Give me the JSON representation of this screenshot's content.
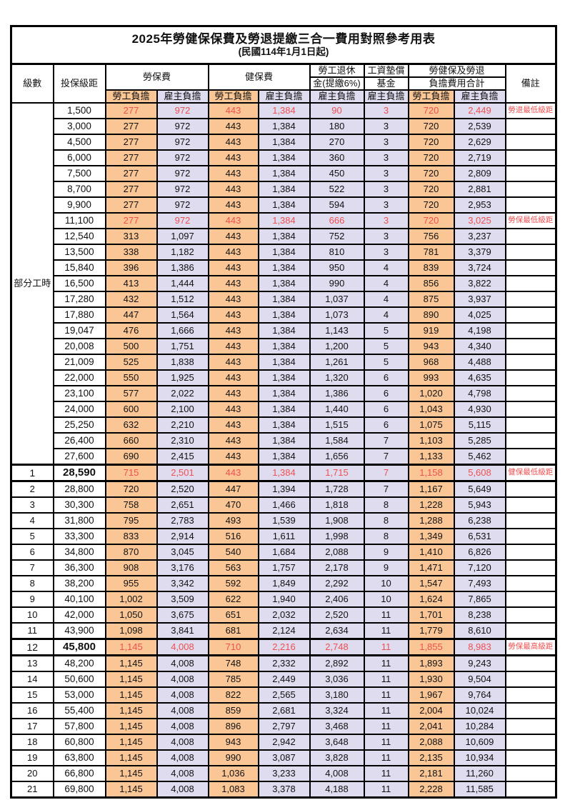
{
  "page": {
    "title": "2025年勞健保保費及勞退提繳三合一費用對照參考用表",
    "subtitle": "(民國114年1月1日起)"
  },
  "colors": {
    "employee_share_bg": "#FAC695",
    "employer_share_bg": "#DFDCF0",
    "highlight_text": "#F05050",
    "border": "#000000"
  },
  "table": {
    "headers": {
      "grade": "級數",
      "bracket": "投保級距",
      "labor_insurance": "勞保費",
      "health_insurance": "健保費",
      "pension_line1": "勞工退休",
      "pension_line2": "金(提繳6%)",
      "wage_fund_line1": "工資墊償",
      "wage_fund_line2": "基金",
      "total_line1": "勞健保及勞退",
      "total_line2": "負擔費用合計",
      "employee_share": "勞工負擔",
      "employer_share": "雇主負擔",
      "remark": "備註"
    },
    "part_time_label": "部分工時",
    "part_time_rowspan": 23,
    "rows": [
      {
        "grade": "",
        "bracket": "1,500",
        "cells": [
          "277",
          "972",
          "443",
          "1,384",
          "90",
          "3",
          "720",
          "2,449"
        ],
        "remark": "勞退最低級距",
        "red": true,
        "bold": false
      },
      {
        "grade": "",
        "bracket": "3,000",
        "cells": [
          "277",
          "972",
          "443",
          "1,384",
          "180",
          "3",
          "720",
          "2,539"
        ],
        "remark": "",
        "red": false,
        "bold": false
      },
      {
        "grade": "",
        "bracket": "4,500",
        "cells": [
          "277",
          "972",
          "443",
          "1,384",
          "270",
          "3",
          "720",
          "2,629"
        ],
        "remark": "",
        "red": false,
        "bold": false
      },
      {
        "grade": "",
        "bracket": "6,000",
        "cells": [
          "277",
          "972",
          "443",
          "1,384",
          "360",
          "3",
          "720",
          "2,719"
        ],
        "remark": "",
        "red": false,
        "bold": false
      },
      {
        "grade": "",
        "bracket": "7,500",
        "cells": [
          "277",
          "972",
          "443",
          "1,384",
          "450",
          "3",
          "720",
          "2,809"
        ],
        "remark": "",
        "red": false,
        "bold": false
      },
      {
        "grade": "",
        "bracket": "8,700",
        "cells": [
          "277",
          "972",
          "443",
          "1,384",
          "522",
          "3",
          "720",
          "2,881"
        ],
        "remark": "",
        "red": false,
        "bold": false
      },
      {
        "grade": "",
        "bracket": "9,900",
        "cells": [
          "277",
          "972",
          "443",
          "1,384",
          "594",
          "3",
          "720",
          "2,953"
        ],
        "remark": "",
        "red": false,
        "bold": false
      },
      {
        "grade": "",
        "bracket": "11,100",
        "cells": [
          "277",
          "972",
          "443",
          "1,384",
          "666",
          "3",
          "720",
          "3,025"
        ],
        "remark": "勞保最低級距",
        "red": true,
        "bold": false
      },
      {
        "grade": "",
        "bracket": "12,540",
        "cells": [
          "313",
          "1,097",
          "443",
          "1,384",
          "752",
          "3",
          "756",
          "3,237"
        ],
        "remark": "",
        "red": false,
        "bold": false
      },
      {
        "grade": "",
        "bracket": "13,500",
        "cells": [
          "338",
          "1,182",
          "443",
          "1,384",
          "810",
          "3",
          "781",
          "3,379"
        ],
        "remark": "",
        "red": false,
        "bold": false
      },
      {
        "grade": "",
        "bracket": "15,840",
        "cells": [
          "396",
          "1,386",
          "443",
          "1,384",
          "950",
          "4",
          "839",
          "3,724"
        ],
        "remark": "",
        "red": false,
        "bold": false
      },
      {
        "grade": "",
        "bracket": "16,500",
        "cells": [
          "413",
          "1,444",
          "443",
          "1,384",
          "990",
          "4",
          "856",
          "3,822"
        ],
        "remark": "",
        "red": false,
        "bold": false
      },
      {
        "grade": "",
        "bracket": "17,280",
        "cells": [
          "432",
          "1,512",
          "443",
          "1,384",
          "1,037",
          "4",
          "875",
          "3,937"
        ],
        "remark": "",
        "red": false,
        "bold": false
      },
      {
        "grade": "",
        "bracket": "17,880",
        "cells": [
          "447",
          "1,564",
          "443",
          "1,384",
          "1,073",
          "4",
          "890",
          "4,025"
        ],
        "remark": "",
        "red": false,
        "bold": false
      },
      {
        "grade": "",
        "bracket": "19,047",
        "cells": [
          "476",
          "1,666",
          "443",
          "1,384",
          "1,143",
          "5",
          "919",
          "4,198"
        ],
        "remark": "",
        "red": false,
        "bold": false
      },
      {
        "grade": "",
        "bracket": "20,008",
        "cells": [
          "500",
          "1,751",
          "443",
          "1,384",
          "1,200",
          "5",
          "943",
          "4,340"
        ],
        "remark": "",
        "red": false,
        "bold": false
      },
      {
        "grade": "",
        "bracket": "21,009",
        "cells": [
          "525",
          "1,838",
          "443",
          "1,384",
          "1,261",
          "5",
          "968",
          "4,488"
        ],
        "remark": "",
        "red": false,
        "bold": false
      },
      {
        "grade": "",
        "bracket": "22,000",
        "cells": [
          "550",
          "1,925",
          "443",
          "1,384",
          "1,320",
          "6",
          "993",
          "4,635"
        ],
        "remark": "",
        "red": false,
        "bold": false
      },
      {
        "grade": "",
        "bracket": "23,100",
        "cells": [
          "577",
          "2,022",
          "443",
          "1,384",
          "1,386",
          "6",
          "1,020",
          "4,798"
        ],
        "remark": "",
        "red": false,
        "bold": false
      },
      {
        "grade": "",
        "bracket": "24,000",
        "cells": [
          "600",
          "2,100",
          "443",
          "1,384",
          "1,440",
          "6",
          "1,043",
          "4,930"
        ],
        "remark": "",
        "red": false,
        "bold": false
      },
      {
        "grade": "",
        "bracket": "25,250",
        "cells": [
          "632",
          "2,210",
          "443",
          "1,384",
          "1,515",
          "6",
          "1,075",
          "5,115"
        ],
        "remark": "",
        "red": false,
        "bold": false
      },
      {
        "grade": "",
        "bracket": "26,400",
        "cells": [
          "660",
          "2,310",
          "443",
          "1,384",
          "1,584",
          "7",
          "1,103",
          "5,285"
        ],
        "remark": "",
        "red": false,
        "bold": false
      },
      {
        "grade": "",
        "bracket": "27,600",
        "cells": [
          "690",
          "2,415",
          "443",
          "1,384",
          "1,656",
          "7",
          "1,133",
          "5,462"
        ],
        "remark": "",
        "red": false,
        "bold": false
      },
      {
        "grade": "1",
        "bracket": "28,590",
        "cells": [
          "715",
          "2,501",
          "443",
          "1,384",
          "1,715",
          "7",
          "1,158",
          "5,608"
        ],
        "remark": "健保最低級距",
        "red": true,
        "bold": true
      },
      {
        "grade": "2",
        "bracket": "28,800",
        "cells": [
          "720",
          "2,520",
          "447",
          "1,394",
          "1,728",
          "7",
          "1,167",
          "5,649"
        ],
        "remark": "",
        "red": false,
        "bold": false
      },
      {
        "grade": "3",
        "bracket": "30,300",
        "cells": [
          "758",
          "2,651",
          "470",
          "1,466",
          "1,818",
          "8",
          "1,228",
          "5,943"
        ],
        "remark": "",
        "red": false,
        "bold": false
      },
      {
        "grade": "4",
        "bracket": "31,800",
        "cells": [
          "795",
          "2,783",
          "493",
          "1,539",
          "1,908",
          "8",
          "1,288",
          "6,238"
        ],
        "remark": "",
        "red": false,
        "bold": false
      },
      {
        "grade": "5",
        "bracket": "33,300",
        "cells": [
          "833",
          "2,914",
          "516",
          "1,611",
          "1,998",
          "8",
          "1,349",
          "6,531"
        ],
        "remark": "",
        "red": false,
        "bold": false
      },
      {
        "grade": "6",
        "bracket": "34,800",
        "cells": [
          "870",
          "3,045",
          "540",
          "1,684",
          "2,088",
          "9",
          "1,410",
          "6,826"
        ],
        "remark": "",
        "red": false,
        "bold": false
      },
      {
        "grade": "7",
        "bracket": "36,300",
        "cells": [
          "908",
          "3,176",
          "563",
          "1,757",
          "2,178",
          "9",
          "1,471",
          "7,120"
        ],
        "remark": "",
        "red": false,
        "bold": false
      },
      {
        "grade": "8",
        "bracket": "38,200",
        "cells": [
          "955",
          "3,342",
          "592",
          "1,849",
          "2,292",
          "10",
          "1,547",
          "7,493"
        ],
        "remark": "",
        "red": false,
        "bold": false
      },
      {
        "grade": "9",
        "bracket": "40,100",
        "cells": [
          "1,002",
          "3,509",
          "622",
          "1,940",
          "2,406",
          "10",
          "1,624",
          "7,865"
        ],
        "remark": "",
        "red": false,
        "bold": false
      },
      {
        "grade": "10",
        "bracket": "42,000",
        "cells": [
          "1,050",
          "3,675",
          "651",
          "2,032",
          "2,520",
          "11",
          "1,701",
          "8,238"
        ],
        "remark": "",
        "red": false,
        "bold": false
      },
      {
        "grade": "11",
        "bracket": "43,900",
        "cells": [
          "1,098",
          "3,841",
          "681",
          "2,124",
          "2,634",
          "11",
          "1,779",
          "8,610"
        ],
        "remark": "",
        "red": false,
        "bold": false
      },
      {
        "grade": "12",
        "bracket": "45,800",
        "cells": [
          "1,145",
          "4,008",
          "710",
          "2,216",
          "2,748",
          "11",
          "1,855",
          "8,983"
        ],
        "remark": "勞保最高級距",
        "red": true,
        "bold": true
      },
      {
        "grade": "13",
        "bracket": "48,200",
        "cells": [
          "1,145",
          "4,008",
          "748",
          "2,332",
          "2,892",
          "11",
          "1,893",
          "9,243"
        ],
        "remark": "",
        "red": false,
        "bold": false
      },
      {
        "grade": "14",
        "bracket": "50,600",
        "cells": [
          "1,145",
          "4,008",
          "785",
          "2,449",
          "3,036",
          "11",
          "1,930",
          "9,504"
        ],
        "remark": "",
        "red": false,
        "bold": false
      },
      {
        "grade": "15",
        "bracket": "53,000",
        "cells": [
          "1,145",
          "4,008",
          "822",
          "2,565",
          "3,180",
          "11",
          "1,967",
          "9,764"
        ],
        "remark": "",
        "red": false,
        "bold": false
      },
      {
        "grade": "16",
        "bracket": "55,400",
        "cells": [
          "1,145",
          "4,008",
          "859",
          "2,681",
          "3,324",
          "11",
          "2,004",
          "10,024"
        ],
        "remark": "",
        "red": false,
        "bold": false
      },
      {
        "grade": "17",
        "bracket": "57,800",
        "cells": [
          "1,145",
          "4,008",
          "896",
          "2,797",
          "3,468",
          "11",
          "2,041",
          "10,284"
        ],
        "remark": "",
        "red": false,
        "bold": false
      },
      {
        "grade": "18",
        "bracket": "60,800",
        "cells": [
          "1,145",
          "4,008",
          "943",
          "2,942",
          "3,648",
          "11",
          "2,088",
          "10,609"
        ],
        "remark": "",
        "red": false,
        "bold": false
      },
      {
        "grade": "19",
        "bracket": "63,800",
        "cells": [
          "1,145",
          "4,008",
          "990",
          "3,087",
          "3,828",
          "11",
          "2,135",
          "10,934"
        ],
        "remark": "",
        "red": false,
        "bold": false
      },
      {
        "grade": "20",
        "bracket": "66,800",
        "cells": [
          "1,145",
          "4,008",
          "1,036",
          "3,233",
          "4,008",
          "11",
          "2,181",
          "11,260"
        ],
        "remark": "",
        "red": false,
        "bold": false
      },
      {
        "grade": "21",
        "bracket": "69,800",
        "cells": [
          "1,145",
          "4,008",
          "1,083",
          "3,378",
          "4,188",
          "11",
          "2,228",
          "11,585"
        ],
        "remark": "",
        "red": false,
        "bold": false
      }
    ]
  }
}
